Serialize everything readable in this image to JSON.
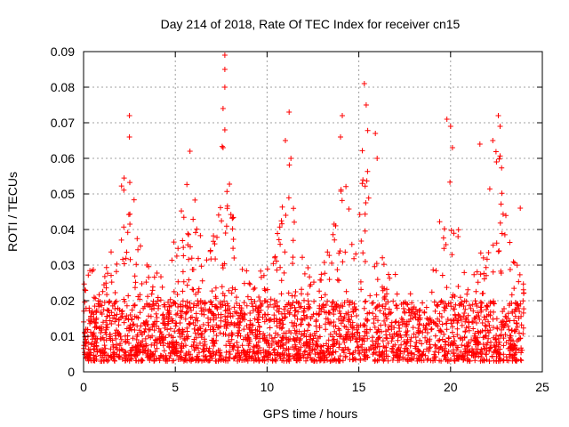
{
  "chart_data": {
    "type": "scatter",
    "title": "Day 214 of 2018, Rate Of TEC Index for receiver cn15",
    "xlabel": "GPS time / hours",
    "ylabel": "ROTI / TECUs",
    "xlim": [
      0,
      25
    ],
    "ylim": [
      0,
      0.09
    ],
    "xticks": [
      0,
      5,
      10,
      15,
      20,
      25
    ],
    "yticks": [
      0,
      0.01,
      0.02,
      0.03,
      0.04,
      0.05,
      0.06,
      0.07,
      0.08,
      0.09
    ],
    "xtick_labels": [
      "0",
      "5",
      "10",
      "15",
      "20",
      "25"
    ],
    "ytick_labels": [
      "0",
      "0.01",
      "0.02",
      "0.03",
      "0.04",
      "0.05",
      "0.06",
      "0.07",
      "0.08",
      "0.09"
    ],
    "grid": true,
    "marker": "+",
    "series_color": "#ff0000",
    "x_range_data": [
      0,
      24
    ],
    "baseline_min": 0.003,
    "notable_points": [
      {
        "x": 2.5,
        "y": 0.072
      },
      {
        "x": 2.5,
        "y": 0.066
      },
      {
        "x": 5.8,
        "y": 0.062
      },
      {
        "x": 7.7,
        "y": 0.089
      },
      {
        "x": 7.7,
        "y": 0.085
      },
      {
        "x": 7.7,
        "y": 0.08
      },
      {
        "x": 7.6,
        "y": 0.074
      },
      {
        "x": 7.7,
        "y": 0.068
      },
      {
        "x": 7.6,
        "y": 0.063
      },
      {
        "x": 11.2,
        "y": 0.073
      },
      {
        "x": 11.0,
        "y": 0.065
      },
      {
        "x": 11.3,
        "y": 0.06
      },
      {
        "x": 14.1,
        "y": 0.072
      },
      {
        "x": 14.0,
        "y": 0.066
      },
      {
        "x": 15.3,
        "y": 0.081
      },
      {
        "x": 15.4,
        "y": 0.075
      },
      {
        "x": 15.9,
        "y": 0.067
      },
      {
        "x": 16.0,
        "y": 0.06
      },
      {
        "x": 19.8,
        "y": 0.071
      },
      {
        "x": 20.0,
        "y": 0.069
      },
      {
        "x": 20.1,
        "y": 0.063
      },
      {
        "x": 21.6,
        "y": 0.064
      },
      {
        "x": 22.3,
        "y": 0.065
      },
      {
        "x": 22.6,
        "y": 0.072
      },
      {
        "x": 22.7,
        "y": 0.069
      },
      {
        "x": 22.5,
        "y": 0.059
      },
      {
        "x": 23.8,
        "y": 0.046
      }
    ]
  }
}
